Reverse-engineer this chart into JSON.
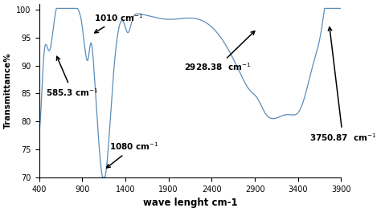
{
  "title": "",
  "xlabel": "wave lenght cm-1",
  "ylabel": "Transmittance%",
  "xlim": [
    400,
    3900
  ],
  "ylim": [
    70,
    101
  ],
  "yticks": [
    70,
    75,
    80,
    85,
    90,
    95,
    100
  ],
  "xticks": [
    400,
    900,
    1400,
    1900,
    2400,
    2900,
    3400,
    3900
  ],
  "line_color": "#5b8db8"
}
